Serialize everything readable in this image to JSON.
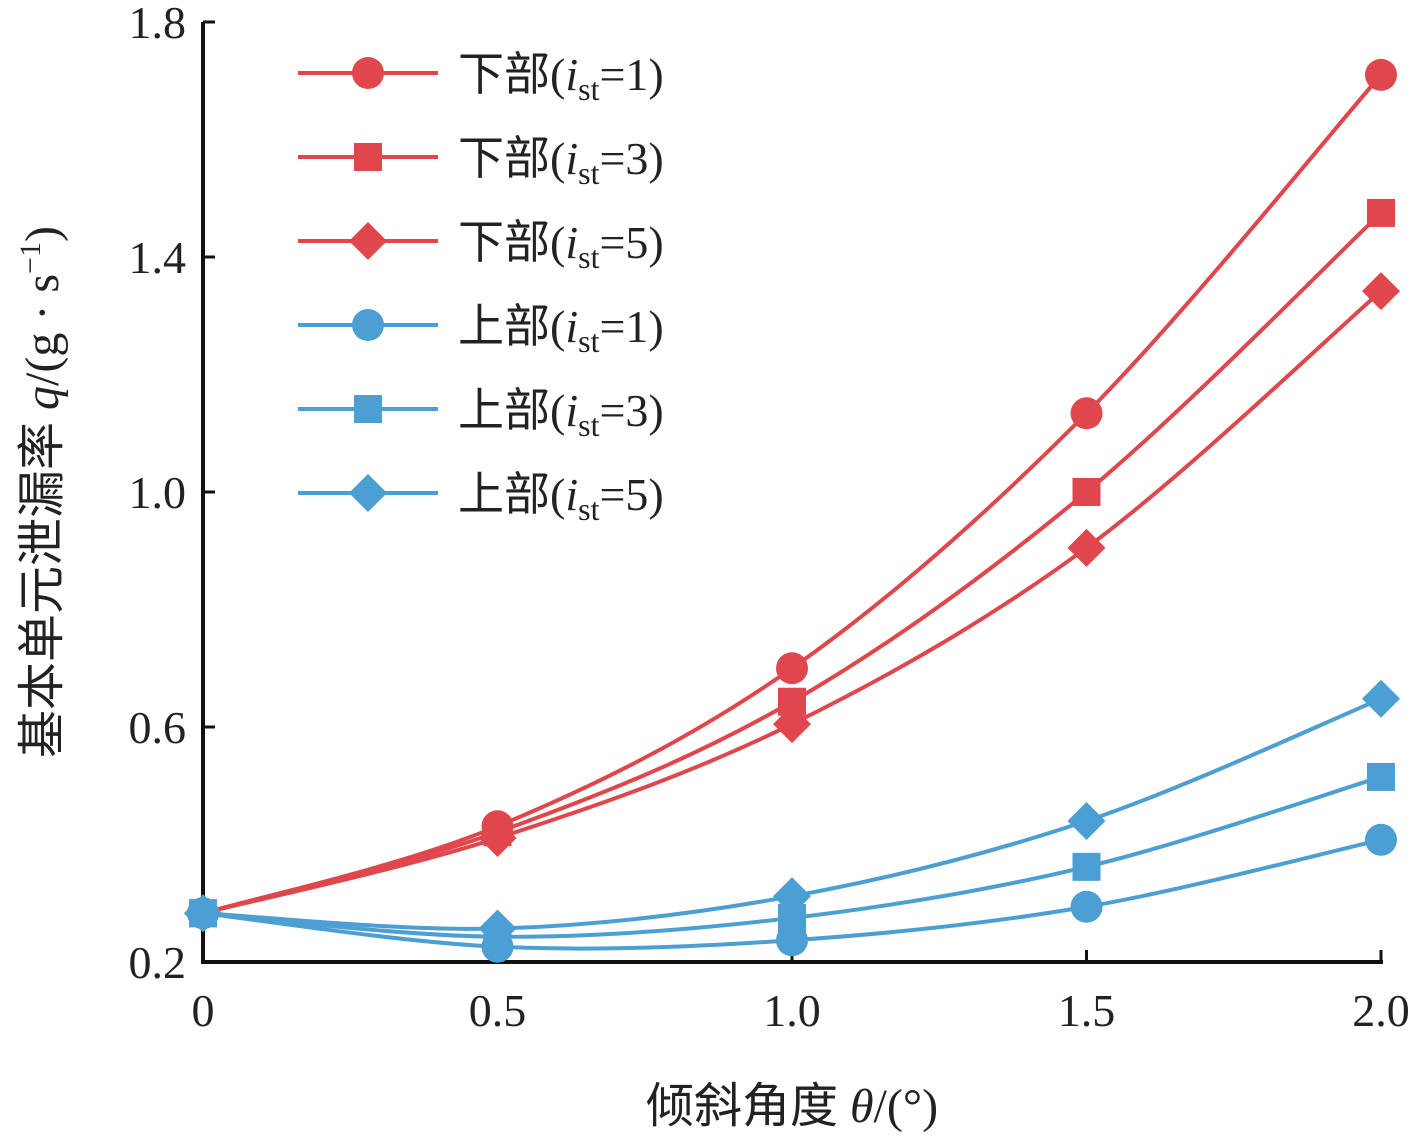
{
  "chart_data": {
    "type": "line",
    "xlabel": {
      "text": "倾斜角度 ",
      "var": "θ",
      "unit": "/(°)"
    },
    "ylabel": {
      "text": "基本单元泄漏率 ",
      "var": "q",
      "unit": "/(g · s",
      "exp": "−1",
      "close": ")"
    },
    "x": [
      0,
      0.5,
      1.0,
      1.5,
      2.0
    ],
    "xticks": [
      "0",
      "0.5",
      "1.0",
      "1.5",
      "2.0"
    ],
    "yticks": [
      "0.2",
      "0.6",
      "1.0",
      "1.4",
      "1.8"
    ],
    "ytick_values": [
      0.2,
      0.6,
      1.0,
      1.4,
      1.8
    ],
    "xlim": [
      0,
      2.0
    ],
    "ylim": [
      0.2,
      1.8
    ],
    "grid": false,
    "legend_position": "top-left",
    "series": [
      {
        "region": "下部",
        "param": "i",
        "sub": "st",
        "value": "=1)",
        "marker": "circle",
        "color": "#e0474c",
        "values": [
          0.283,
          0.431,
          0.7,
          1.134,
          1.71
        ]
      },
      {
        "region": "下部",
        "param": "i",
        "sub": "st",
        "value": "=3)",
        "marker": "square",
        "color": "#e0474c",
        "values": [
          0.283,
          0.421,
          0.643,
          1.0,
          1.475
        ]
      },
      {
        "region": "下部",
        "param": "i",
        "sub": "st",
        "value": "=5)",
        "marker": "diamond",
        "color": "#e0474c",
        "values": [
          0.283,
          0.411,
          0.605,
          0.905,
          1.342
        ]
      },
      {
        "region": "上部",
        "param": "i",
        "sub": "st",
        "value": "=1)",
        "marker": "circle",
        "color": "#4b9fd3",
        "values": [
          0.283,
          0.226,
          0.237,
          0.294,
          0.408
        ]
      },
      {
        "region": "上部",
        "param": "i",
        "sub": "st",
        "value": "=3)",
        "marker": "square",
        "color": "#4b9fd3",
        "values": [
          0.283,
          0.243,
          0.275,
          0.362,
          0.515
        ]
      },
      {
        "region": "上部",
        "param": "i",
        "sub": "st",
        "value": "=5)",
        "marker": "diamond",
        "color": "#4b9fd3",
        "values": [
          0.283,
          0.257,
          0.312,
          0.44,
          0.648
        ]
      }
    ]
  }
}
